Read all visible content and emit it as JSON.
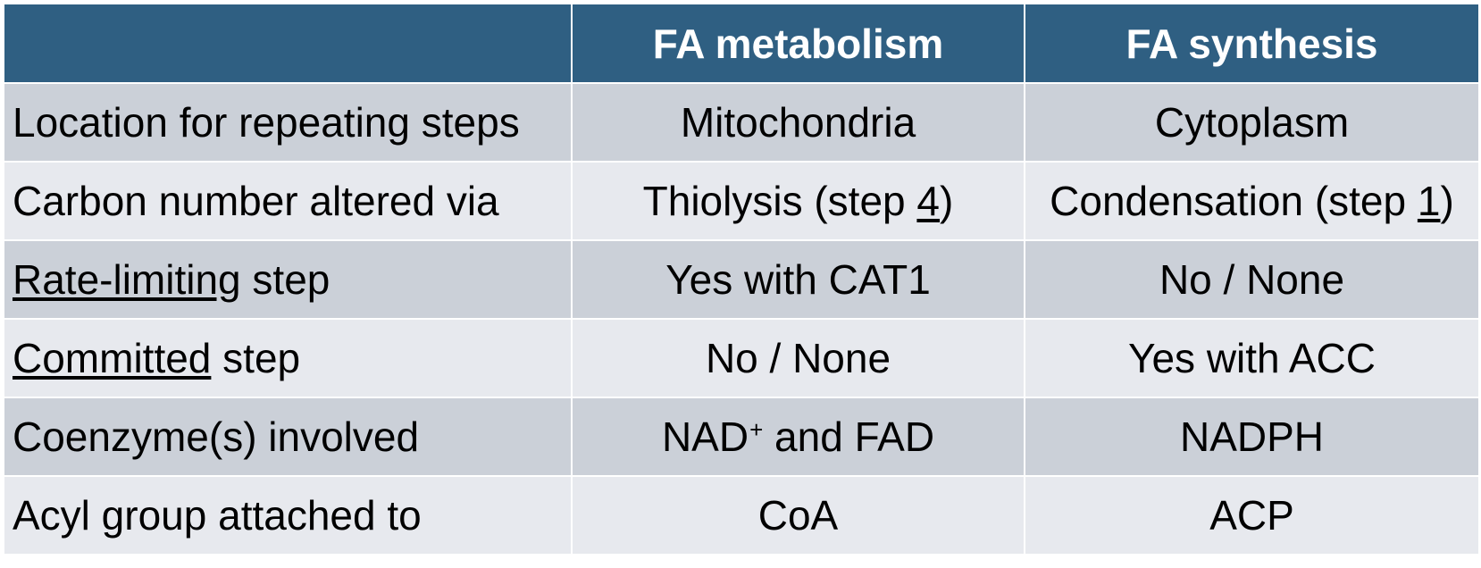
{
  "table": {
    "headers": [
      "",
      "FA metabolism",
      "FA synthesis"
    ],
    "rows": [
      {
        "label": {
          "pre": "Location for repeating steps",
          "u": "",
          "post": ""
        },
        "metabolism": {
          "pre": "Mitochondria",
          "u": "",
          "post": ""
        },
        "synthesis": {
          "pre": "Cytoplasm",
          "u": "",
          "post": ""
        }
      },
      {
        "label": {
          "pre": "Carbon number altered via",
          "u": "",
          "post": ""
        },
        "metabolism": {
          "pre": "Thiolysis (step ",
          "u": "4",
          "post": ")"
        },
        "synthesis": {
          "pre": "Condensation (step ",
          "u": "1",
          "post": ")"
        }
      },
      {
        "label": {
          "pre": "",
          "u": "Rate-limiting",
          "post": " step"
        },
        "metabolism": {
          "pre": "Yes with CAT1",
          "u": "",
          "post": ""
        },
        "synthesis": {
          "pre": "No / None",
          "u": "",
          "post": ""
        }
      },
      {
        "label": {
          "pre": "",
          "u": "Committed",
          "post": " step"
        },
        "metabolism": {
          "pre": "No / None",
          "u": "",
          "post": ""
        },
        "synthesis": {
          "pre": "Yes with ACC",
          "u": "",
          "post": ""
        }
      },
      {
        "label": {
          "pre": "Coenzyme(s) involved",
          "u": "",
          "post": ""
        },
        "metabolism": {
          "pre": "NAD",
          "sup": "+",
          "post": " and FAD"
        },
        "synthesis": {
          "pre": "NADPH",
          "u": "",
          "post": ""
        }
      },
      {
        "label": {
          "pre": "Acyl group attached to",
          "u": "",
          "post": ""
        },
        "metabolism": {
          "pre": "CoA",
          "u": "",
          "post": ""
        },
        "synthesis": {
          "pre": "ACP",
          "u": "",
          "post": ""
        }
      }
    ]
  },
  "colors": {
    "header_bg": "#2f5f82",
    "header_text": "#ffffff",
    "row_dark": "#cbd0d8",
    "row_light": "#e7e9ee"
  }
}
